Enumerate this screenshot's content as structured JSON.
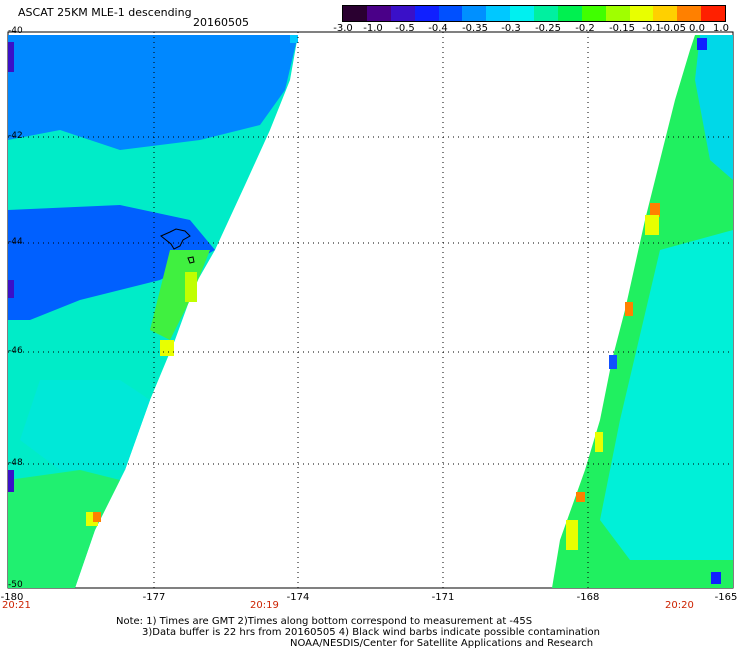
{
  "header": {
    "title": "ASCAT 25KM MLE-1 descending",
    "date": "20160505"
  },
  "colorbar": {
    "colors": [
      "#2a0030",
      "#4a0088",
      "#3a10c8",
      "#1020ff",
      "#0050ff",
      "#0090ff",
      "#00c8ff",
      "#00f0f0",
      "#00f0a0",
      "#00f050",
      "#40ff00",
      "#a0ff00",
      "#e8ff00",
      "#ffd000",
      "#ff8000",
      "#ff2000"
    ],
    "labels": [
      "-3.0",
      "-1.0",
      "-0.5",
      "-0.4",
      "-0.35",
      "-0.3",
      "-0.25",
      "-0.2",
      "-0.15",
      "-0.1",
      "-0.05",
      "0.0",
      "1.0"
    ]
  },
  "map": {
    "y_ticks": [
      "-40",
      "-42",
      "-44",
      "-46",
      "-48",
      "-50"
    ],
    "x_ticks": [
      "-180",
      "-177",
      "-174",
      "-171",
      "-168",
      "-165"
    ],
    "time_labels": [
      "20:21",
      "20:19",
      "20:20"
    ],
    "lat_range": [
      -50,
      -40
    ],
    "lon_range": [
      -180,
      -165
    ]
  },
  "notes": {
    "line1": "Note: 1) Times are GMT 2)Times along bottom correspond to measurement at -45S",
    "line2": "3)Data buffer is 22 hrs from 20160505 4) Black wind barbs indicate possible contamination",
    "line3": "NOAA/NESDIS/Center for Satellite Applications and Research"
  }
}
